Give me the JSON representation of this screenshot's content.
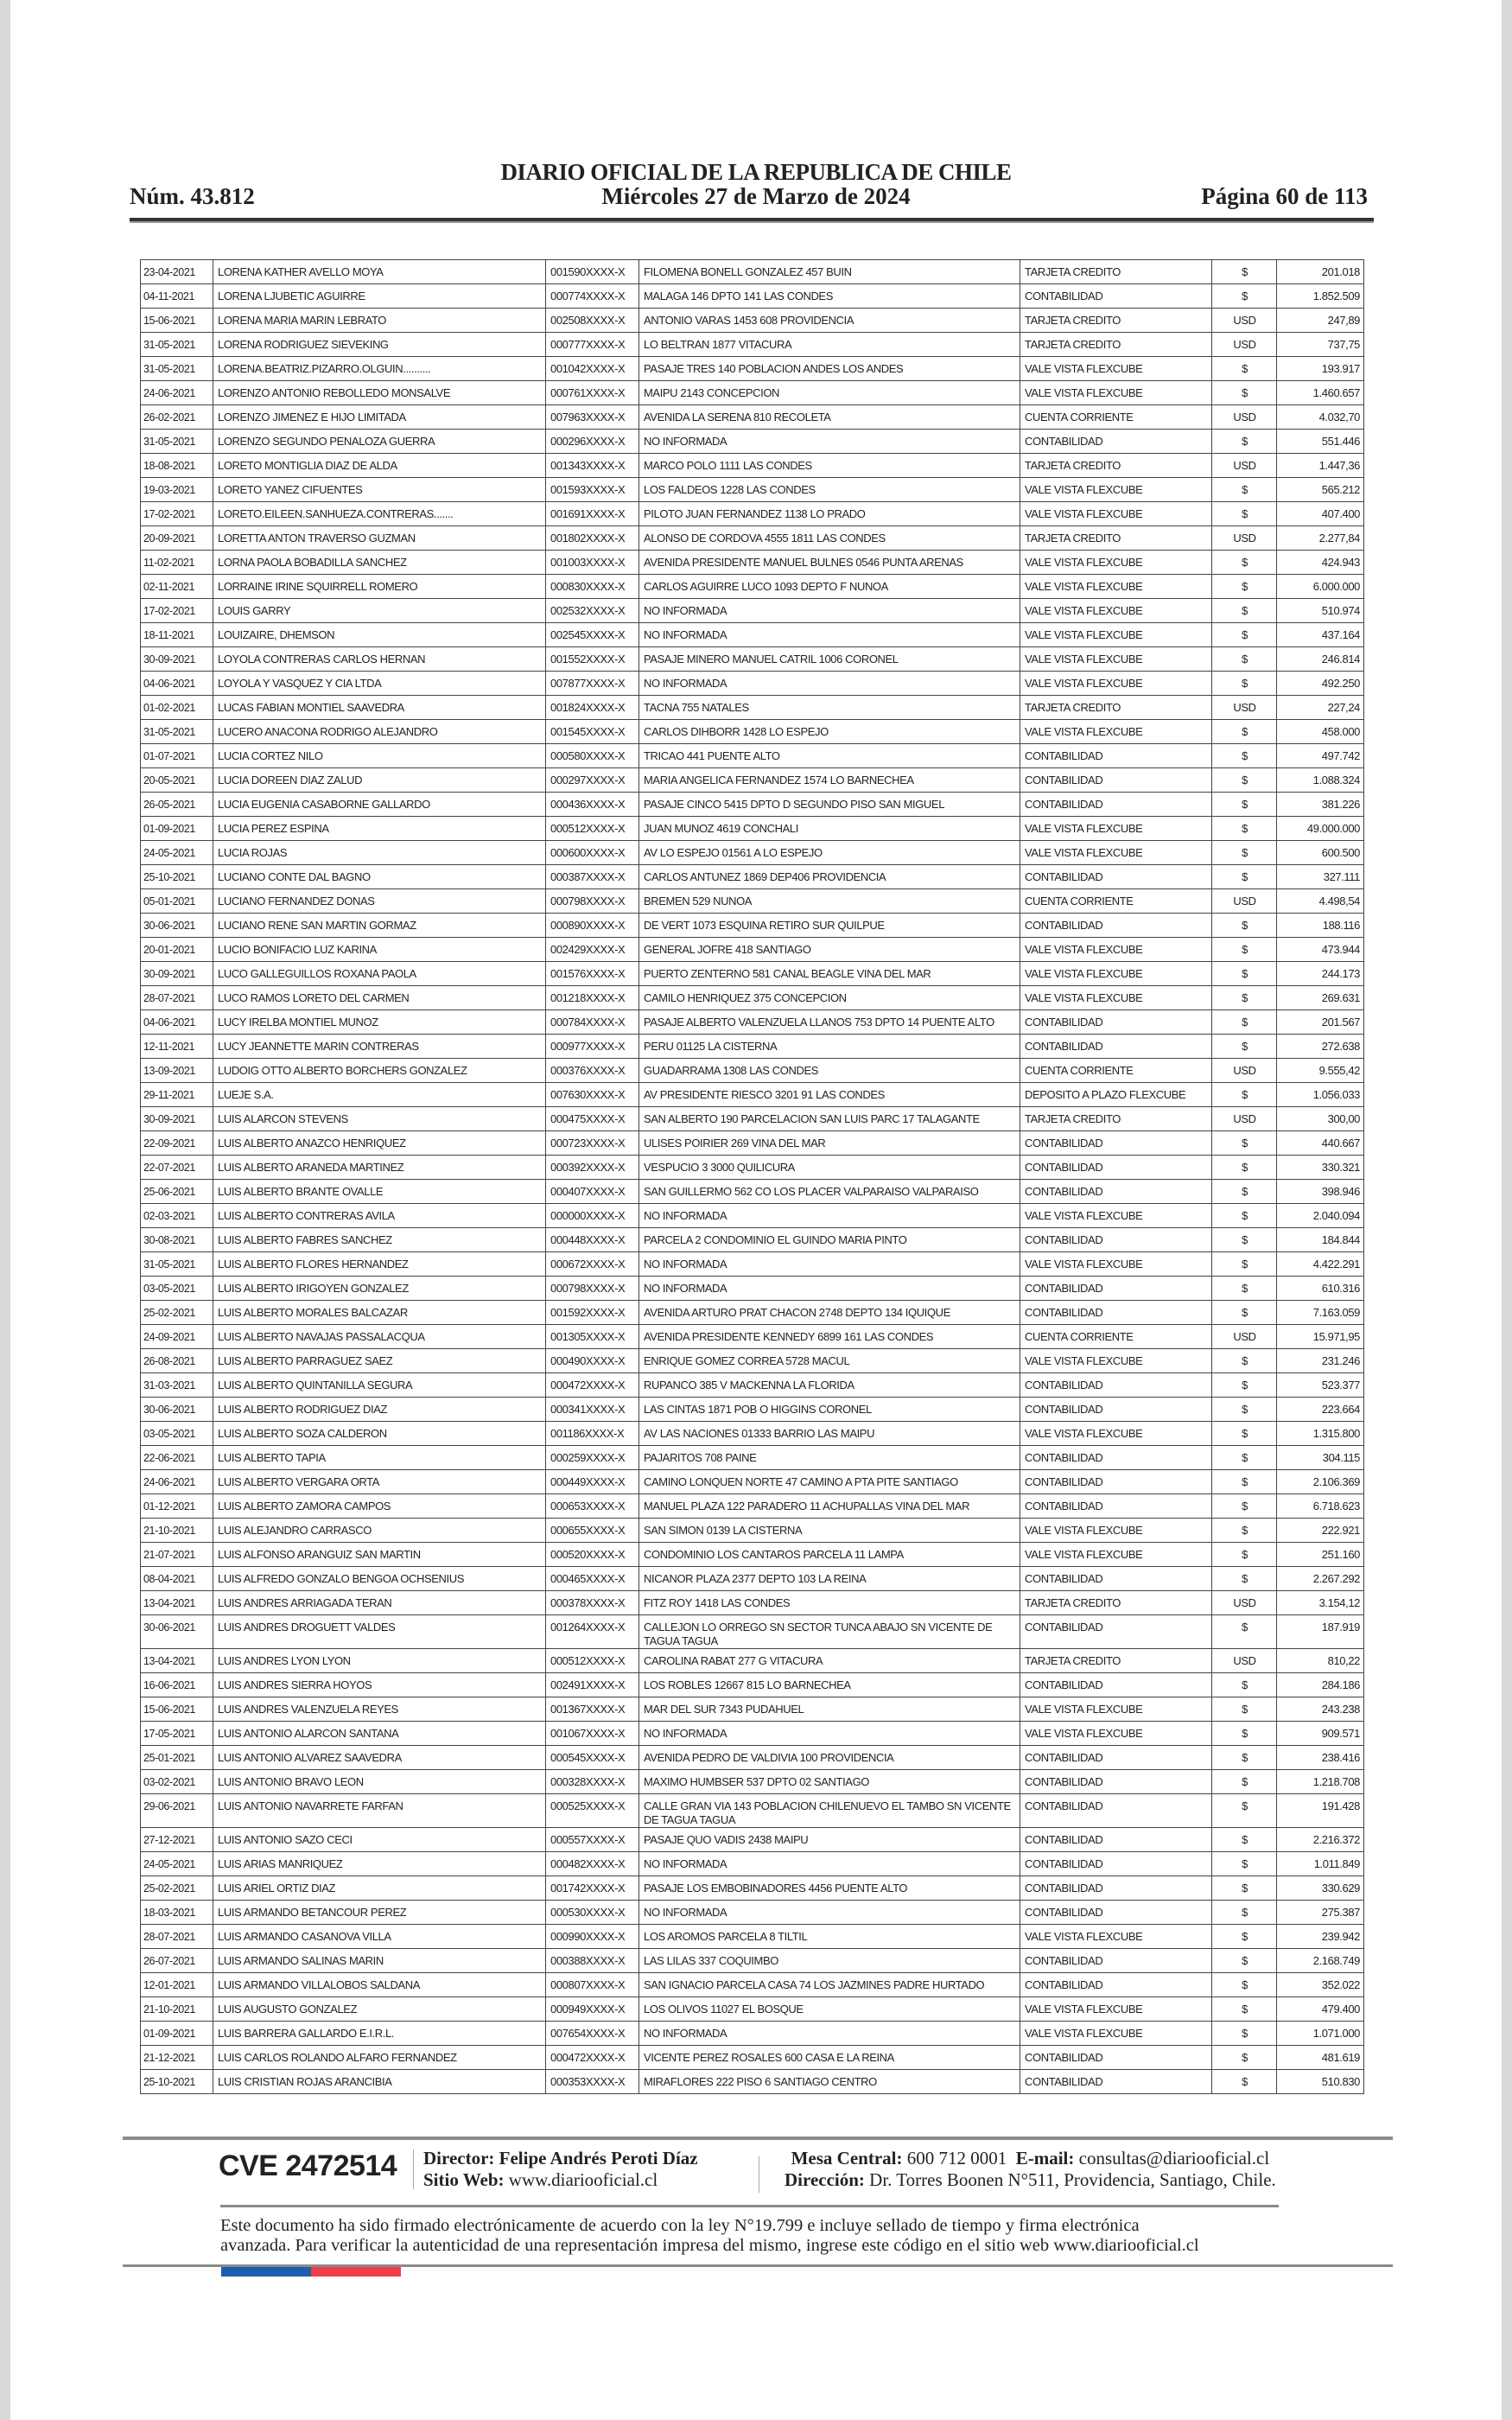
{
  "header": {
    "title": "DIARIO OFICIAL DE LA REPUBLICA DE CHILE",
    "number": "Núm. 43.812",
    "date": "Miércoles 27 de Marzo de 2024",
    "page": "Página 60 de 113"
  },
  "table": {
    "rows": [
      [
        "23-04-2021",
        "LORENA KATHER AVELLO MOYA",
        "001590XXXX-X",
        "FILOMENA BONELL GONZALEZ 457 BUIN",
        "TARJETA CREDITO",
        "$",
        "201.018"
      ],
      [
        "04-11-2021",
        "LORENA LJUBETIC AGUIRRE",
        "000774XXXX-X",
        "MALAGA 146 DPTO 141 LAS CONDES",
        "CONTABILIDAD",
        "$",
        "1.852.509"
      ],
      [
        "15-06-2021",
        "LORENA MARIA MARIN LEBRATO",
        "002508XXXX-X",
        "ANTONIO VARAS 1453 608 PROVIDENCIA",
        "TARJETA CREDITO",
        "USD",
        "247,89"
      ],
      [
        "31-05-2021",
        "LORENA RODRIGUEZ SIEVEKING",
        "000777XXXX-X",
        "LO BELTRAN 1877 VITACURA",
        "TARJETA CREDITO",
        "USD",
        "737,75"
      ],
      [
        "31-05-2021",
        "LORENA.BEATRIZ.PIZARRO.OLGUIN..........",
        "001042XXXX-X",
        "PASAJE TRES 140 POBLACION ANDES LOS ANDES",
        "VALE VISTA FLEXCUBE",
        "$",
        "193.917"
      ],
      [
        "24-06-2021",
        "LORENZO ANTONIO REBOLLEDO MONSALVE",
        "000761XXXX-X",
        "MAIPU 2143 CONCEPCION",
        "VALE VISTA FLEXCUBE",
        "$",
        "1.460.657"
      ],
      [
        "26-02-2021",
        "LORENZO JIMENEZ E HIJO LIMITADA",
        "007963XXXX-X",
        "AVENIDA LA SERENA 810 RECOLETA",
        "CUENTA CORRIENTE",
        "USD",
        "4.032,70"
      ],
      [
        "31-05-2021",
        "LORENZO SEGUNDO PENALOZA GUERRA",
        "000296XXXX-X",
        "NO INFORMADA",
        "CONTABILIDAD",
        "$",
        "551.446"
      ],
      [
        "18-08-2021",
        "LORETO MONTIGLIA DIAZ DE ALDA",
        "001343XXXX-X",
        "MARCO POLO 1111 LAS CONDES",
        "TARJETA CREDITO",
        "USD",
        "1.447,36"
      ],
      [
        "19-03-2021",
        "LORETO YANEZ CIFUENTES",
        "001593XXXX-X",
        "LOS FALDEOS 1228 LAS CONDES",
        "VALE VISTA FLEXCUBE",
        "$",
        "565.212"
      ],
      [
        "17-02-2021",
        "LORETO.EILEEN.SANHUEZA.CONTRERAS.......",
        "001691XXXX-X",
        "PILOTO JUAN FERNANDEZ 1138 LO PRADO",
        "VALE VISTA FLEXCUBE",
        "$",
        "407.400"
      ],
      [
        "20-09-2021",
        "LORETTA ANTON TRAVERSO GUZMAN",
        "001802XXXX-X",
        "ALONSO DE CORDOVA 4555 1811 LAS CONDES",
        "TARJETA CREDITO",
        "USD",
        "2.277,84"
      ],
      [
        "11-02-2021",
        "LORNA PAOLA BOBADILLA SANCHEZ",
        "001003XXXX-X",
        "AVENIDA PRESIDENTE MANUEL BULNES 0546 PUNTA ARENAS",
        "VALE VISTA FLEXCUBE",
        "$",
        "424.943"
      ],
      [
        "02-11-2021",
        "LORRAINE IRINE SQUIRRELL ROMERO",
        "000830XXXX-X",
        "CARLOS AGUIRRE LUCO 1093 DEPTO F NUNOA",
        "VALE VISTA FLEXCUBE",
        "$",
        "6.000.000"
      ],
      [
        "17-02-2021",
        "LOUIS GARRY",
        "002532XXXX-X",
        "NO INFORMADA",
        "VALE VISTA FLEXCUBE",
        "$",
        "510.974"
      ],
      [
        "18-11-2021",
        "LOUIZAIRE, DHEMSON",
        "002545XXXX-X",
        "NO INFORMADA",
        "VALE VISTA FLEXCUBE",
        "$",
        "437.164"
      ],
      [
        "30-09-2021",
        "LOYOLA CONTRERAS CARLOS HERNAN",
        "001552XXXX-X",
        "PASAJE MINERO MANUEL CATRIL 1006 CORONEL",
        "VALE VISTA FLEXCUBE",
        "$",
        "246.814"
      ],
      [
        "04-06-2021",
        "LOYOLA Y VASQUEZ Y CIA LTDA",
        "007877XXXX-X",
        "NO INFORMADA",
        "VALE VISTA FLEXCUBE",
        "$",
        "492.250"
      ],
      [
        "01-02-2021",
        "LUCAS FABIAN MONTIEL SAAVEDRA",
        "001824XXXX-X",
        "TACNA 755 NATALES",
        "TARJETA CREDITO",
        "USD",
        "227,24"
      ],
      [
        "31-05-2021",
        "LUCERO ANACONA RODRIGO ALEJANDRO",
        "001545XXXX-X",
        "CARLOS DIHBORR 1428 LO ESPEJO",
        "VALE VISTA FLEXCUBE",
        "$",
        "458.000"
      ],
      [
        "01-07-2021",
        "LUCIA CORTEZ NILO",
        "000580XXXX-X",
        "TRICAO 441 PUENTE ALTO",
        "CONTABILIDAD",
        "$",
        "497.742"
      ],
      [
        "20-05-2021",
        "LUCIA DOREEN DIAZ ZALUD",
        "000297XXXX-X",
        "MARIA ANGELICA FERNANDEZ 1574 LO BARNECHEA",
        "CONTABILIDAD",
        "$",
        "1.088.324"
      ],
      [
        "26-05-2021",
        "LUCIA EUGENIA CASABORNE GALLARDO",
        "000436XXXX-X",
        "PASAJE CINCO 5415 DPTO D SEGUNDO PISO SAN MIGUEL",
        "CONTABILIDAD",
        "$",
        "381.226"
      ],
      [
        "01-09-2021",
        "LUCIA PEREZ ESPINA",
        "000512XXXX-X",
        "JUAN MUNOZ 4619 CONCHALI",
        "VALE VISTA FLEXCUBE",
        "$",
        "49.000.000"
      ],
      [
        "24-05-2021",
        "LUCIA ROJAS",
        "000600XXXX-X",
        "AV LO ESPEJO 01561 A LO ESPEJO",
        "VALE VISTA FLEXCUBE",
        "$",
        "600.500"
      ],
      [
        "25-10-2021",
        "LUCIANO CONTE DAL BAGNO",
        "000387XXXX-X",
        "CARLOS ANTUNEZ 1869 DEP406 PROVIDENCIA",
        "CONTABILIDAD",
        "$",
        "327.111"
      ],
      [
        "05-01-2021",
        "LUCIANO FERNANDEZ DONAS",
        "000798XXXX-X",
        "BREMEN 529 NUNOA",
        "CUENTA CORRIENTE",
        "USD",
        "4.498,54"
      ],
      [
        "30-06-2021",
        "LUCIANO RENE SAN MARTIN GORMAZ",
        "000890XXXX-X",
        "DE VERT 1073 ESQUINA RETIRO SUR QUILPUE",
        "CONTABILIDAD",
        "$",
        "188.116"
      ],
      [
        "20-01-2021",
        "LUCIO BONIFACIO LUZ KARINA",
        "002429XXXX-X",
        "GENERAL JOFRE 418 SANTIAGO",
        "VALE VISTA FLEXCUBE",
        "$",
        "473.944"
      ],
      [
        "30-09-2021",
        "LUCO GALLEGUILLOS ROXANA PAOLA",
        "001576XXXX-X",
        "PUERTO ZENTERNO 581 CANAL BEAGLE VINA DEL MAR",
        "VALE VISTA FLEXCUBE",
        "$",
        "244.173"
      ],
      [
        "28-07-2021",
        "LUCO RAMOS LORETO DEL CARMEN",
        "001218XXXX-X",
        "CAMILO HENRIQUEZ 375 CONCEPCION",
        "VALE VISTA FLEXCUBE",
        "$",
        "269.631"
      ],
      [
        "04-06-2021",
        "LUCY IRELBA MONTIEL MUNOZ",
        "000784XXXX-X",
        "PASAJE ALBERTO VALENZUELA LLANOS 753 DPTO 14 PUENTE ALTO",
        "CONTABILIDAD",
        "$",
        "201.567"
      ],
      [
        "12-11-2021",
        "LUCY JEANNETTE MARIN CONTRERAS",
        "000977XXXX-X",
        "PERU 01125 LA CISTERNA",
        "CONTABILIDAD",
        "$",
        "272.638"
      ],
      [
        "13-09-2021",
        "LUDOIG OTTO ALBERTO BORCHERS GONZALEZ",
        "000376XXXX-X",
        "GUADARRAMA 1308 LAS CONDES",
        "CUENTA CORRIENTE",
        "USD",
        "9.555,42"
      ],
      [
        "29-11-2021",
        "LUEJE S.A.",
        "007630XXXX-X",
        "AV PRESIDENTE RIESCO 3201 91 LAS CONDES",
        "DEPOSITO A PLAZO FLEXCUBE",
        "$",
        "1.056.033"
      ],
      [
        "30-09-2021",
        "LUIS ALARCON STEVENS",
        "000475XXXX-X",
        "SAN ALBERTO 190 PARCELACION SAN LUIS PARC 17 TALAGANTE",
        "TARJETA CREDITO",
        "USD",
        "300,00"
      ],
      [
        "22-09-2021",
        "LUIS ALBERTO ANAZCO HENRIQUEZ",
        "000723XXXX-X",
        "ULISES POIRIER 269 VINA DEL MAR",
        "CONTABILIDAD",
        "$",
        "440.667"
      ],
      [
        "22-07-2021",
        "LUIS ALBERTO ARANEDA MARTINEZ",
        "000392XXXX-X",
        "VESPUCIO 3 3000 QUILICURA",
        "CONTABILIDAD",
        "$",
        "330.321"
      ],
      [
        "25-06-2021",
        "LUIS ALBERTO BRANTE OVALLE",
        "000407XXXX-X",
        "SAN GUILLERMO 562 CO LOS PLACER VALPARAISO VALPARAISO",
        "CONTABILIDAD",
        "$",
        "398.946"
      ],
      [
        "02-03-2021",
        "LUIS ALBERTO CONTRERAS AVILA",
        "000000XXXX-X",
        "NO INFORMADA",
        "VALE VISTA FLEXCUBE",
        "$",
        "2.040.094"
      ],
      [
        "30-08-2021",
        "LUIS ALBERTO FABRES SANCHEZ",
        "000448XXXX-X",
        "PARCELA 2 CONDOMINIO EL GUINDO MARIA PINTO",
        "CONTABILIDAD",
        "$",
        "184.844"
      ],
      [
        "31-05-2021",
        "LUIS ALBERTO FLORES HERNANDEZ",
        "000672XXXX-X",
        "NO INFORMADA",
        "VALE VISTA FLEXCUBE",
        "$",
        "4.422.291"
      ],
      [
        "03-05-2021",
        "LUIS ALBERTO IRIGOYEN GONZALEZ",
        "000798XXXX-X",
        "NO INFORMADA",
        "CONTABILIDAD",
        "$",
        "610.316"
      ],
      [
        "25-02-2021",
        "LUIS ALBERTO MORALES BALCAZAR",
        "001592XXXX-X",
        "AVENIDA ARTURO PRAT CHACON 2748 DEPTO 134 IQUIQUE",
        "CONTABILIDAD",
        "$",
        "7.163.059"
      ],
      [
        "24-09-2021",
        "LUIS ALBERTO NAVAJAS PASSALACQUA",
        "001305XXXX-X",
        "AVENIDA PRESIDENTE KENNEDY 6899 161 LAS CONDES",
        "CUENTA CORRIENTE",
        "USD",
        "15.971,95"
      ],
      [
        "26-08-2021",
        "LUIS ALBERTO PARRAGUEZ SAEZ",
        "000490XXXX-X",
        "ENRIQUE GOMEZ CORREA 5728 MACUL",
        "VALE VISTA FLEXCUBE",
        "$",
        "231.246"
      ],
      [
        "31-03-2021",
        "LUIS ALBERTO QUINTANILLA SEGURA",
        "000472XXXX-X",
        "RUPANCO 385 V MACKENNA LA FLORIDA",
        "CONTABILIDAD",
        "$",
        "523.377"
      ],
      [
        "30-06-2021",
        "LUIS ALBERTO RODRIGUEZ DIAZ",
        "000341XXXX-X",
        "LAS CINTAS 1871 POB O HIGGINS CORONEL",
        "CONTABILIDAD",
        "$",
        "223.664"
      ],
      [
        "03-05-2021",
        "LUIS ALBERTO SOZA CALDERON",
        "001186XXXX-X",
        "AV LAS NACIONES 01333 BARRIO LAS MAIPU",
        "VALE VISTA FLEXCUBE",
        "$",
        "1.315.800"
      ],
      [
        "22-06-2021",
        "LUIS ALBERTO TAPIA",
        "000259XXXX-X",
        "PAJARITOS 708 PAINE",
        "CONTABILIDAD",
        "$",
        "304.115"
      ],
      [
        "24-06-2021",
        "LUIS ALBERTO VERGARA ORTA",
        "000449XXXX-X",
        "CAMINO LONQUEN NORTE 47 CAMINO A PTA PITE SANTIAGO",
        "CONTABILIDAD",
        "$",
        "2.106.369"
      ],
      [
        "01-12-2021",
        "LUIS ALBERTO ZAMORA CAMPOS",
        "000653XXXX-X",
        "MANUEL PLAZA 122 PARADERO 11 ACHUPALLAS VINA DEL MAR",
        "CONTABILIDAD",
        "$",
        "6.718.623"
      ],
      [
        "21-10-2021",
        "LUIS ALEJANDRO CARRASCO",
        "000655XXXX-X",
        "SAN SIMON 0139 LA CISTERNA",
        "VALE VISTA FLEXCUBE",
        "$",
        "222.921"
      ],
      [
        "21-07-2021",
        "LUIS ALFONSO ARANGUIZ SAN MARTIN",
        "000520XXXX-X",
        "CONDOMINIO LOS CANTAROS PARCELA 11 LAMPA",
        "VALE VISTA FLEXCUBE",
        "$",
        "251.160"
      ],
      [
        "08-04-2021",
        "LUIS ALFREDO GONZALO BENGOA OCHSENIUS",
        "000465XXXX-X",
        "NICANOR PLAZA 2377 DEPTO 103 LA REINA",
        "CONTABILIDAD",
        "$",
        "2.267.292"
      ],
      [
        "13-04-2021",
        "LUIS ANDRES ARRIAGADA TERAN",
        "000378XXXX-X",
        "FITZ ROY 1418 LAS CONDES",
        "TARJETA CREDITO",
        "USD",
        "3.154,12"
      ],
      [
        "30-06-2021",
        "LUIS ANDRES DROGUETT VALDES",
        "001264XXXX-X",
        "CALLEJON LO ORREGO SN SECTOR TUNCA ABAJO SN VICENTE DE TAGUA TAGUA",
        "CONTABILIDAD",
        "$",
        "187.919"
      ],
      [
        "13-04-2021",
        "LUIS ANDRES LYON LYON",
        "000512XXXX-X",
        "CAROLINA RABAT 277 G VITACURA",
        "TARJETA CREDITO",
        "USD",
        "810,22"
      ],
      [
        "16-06-2021",
        "LUIS ANDRES SIERRA HOYOS",
        "002491XXXX-X",
        "LOS ROBLES 12667 815 LO BARNECHEA",
        "CONTABILIDAD",
        "$",
        "284.186"
      ],
      [
        "15-06-2021",
        "LUIS ANDRES VALENZUELA REYES",
        "001367XXXX-X",
        "MAR DEL SUR 7343 PUDAHUEL",
        "VALE VISTA FLEXCUBE",
        "$",
        "243.238"
      ],
      [
        "17-05-2021",
        "LUIS ANTONIO ALARCON SANTANA",
        "001067XXXX-X",
        "NO INFORMADA",
        "VALE VISTA FLEXCUBE",
        "$",
        "909.571"
      ],
      [
        "25-01-2021",
        "LUIS ANTONIO ALVAREZ SAAVEDRA",
        "000545XXXX-X",
        "AVENIDA PEDRO DE VALDIVIA 100 PROVIDENCIA",
        "CONTABILIDAD",
        "$",
        "238.416"
      ],
      [
        "03-02-2021",
        "LUIS ANTONIO BRAVO LEON",
        "000328XXXX-X",
        "MAXIMO HUMBSER 537 DPTO 02 SANTIAGO",
        "CONTABILIDAD",
        "$",
        "1.218.708"
      ],
      [
        "29-06-2021",
        "LUIS ANTONIO NAVARRETE FARFAN",
        "000525XXXX-X",
        "CALLE GRAN VIA 143 POBLACION CHILENUEVO EL TAMBO SN VICENTE DE TAGUA TAGUA",
        "CONTABILIDAD",
        "$",
        "191.428"
      ],
      [
        "27-12-2021",
        "LUIS ANTONIO SAZO CECI",
        "000557XXXX-X",
        "PASAJE QUO VADIS 2438 MAIPU",
        "CONTABILIDAD",
        "$",
        "2.216.372"
      ],
      [
        "24-05-2021",
        "LUIS ARIAS MANRIQUEZ",
        "000482XXXX-X",
        "NO INFORMADA",
        "CONTABILIDAD",
        "$",
        "1.011.849"
      ],
      [
        "25-02-2021",
        "LUIS ARIEL ORTIZ DIAZ",
        "001742XXXX-X",
        "PASAJE LOS EMBOBINADORES 4456 PUENTE ALTO",
        "CONTABILIDAD",
        "$",
        "330.629"
      ],
      [
        "18-03-2021",
        "LUIS ARMANDO BETANCOUR PEREZ",
        "000530XXXX-X",
        "NO INFORMADA",
        "CONTABILIDAD",
        "$",
        "275.387"
      ],
      [
        "28-07-2021",
        "LUIS ARMANDO CASANOVA VILLA",
        "000990XXXX-X",
        "LOS AROMOS PARCELA 8 TILTIL",
        "VALE VISTA FLEXCUBE",
        "$",
        "239.942"
      ],
      [
        "26-07-2021",
        "LUIS ARMANDO SALINAS MARIN",
        "000388XXXX-X",
        "LAS LILAS 337 COQUIMBO",
        "CONTABILIDAD",
        "$",
        "2.168.749"
      ],
      [
        "12-01-2021",
        "LUIS ARMANDO VILLALOBOS SALDANA",
        "000807XXXX-X",
        "SAN IGNACIO PARCELA CASA 74 LOS JAZMINES PADRE HURTADO",
        "CONTABILIDAD",
        "$",
        "352.022"
      ],
      [
        "21-10-2021",
        "LUIS AUGUSTO GONZALEZ",
        "000949XXXX-X",
        "LOS OLIVOS 11027 EL BOSQUE",
        "VALE VISTA FLEXCUBE",
        "$",
        "479.400"
      ],
      [
        "01-09-2021",
        "LUIS BARRERA GALLARDO E.I.R.L.",
        "007654XXXX-X",
        "NO INFORMADA",
        "VALE VISTA FLEXCUBE",
        "$",
        "1.071.000"
      ],
      [
        "21-12-2021",
        "LUIS CARLOS ROLANDO ALFARO FERNANDEZ",
        "000472XXXX-X",
        "VICENTE PEREZ ROSALES 600 CASA E LA REINA",
        "CONTABILIDAD",
        "$",
        "481.619"
      ],
      [
        "25-10-2021",
        "LUIS CRISTIAN ROJAS ARANCIBIA",
        "000353XXXX-X",
        "MIRAFLORES 222 PISO 6 SANTIAGO CENTRO",
        "CONTABILIDAD",
        "$",
        "510.830"
      ]
    ]
  },
  "footer": {
    "cve": "CVE 2472514",
    "director_label": "Director:",
    "director_name": "Felipe Andrés Peroti Díaz",
    "web_label": "Sitio Web:",
    "web_value": "www.diariooficial.cl",
    "phone_label": "Mesa Central:",
    "phone_value": "600 712 0001",
    "email_label": "E-mail:",
    "email_value": "consultas@diariooficial.cl",
    "address_label": "Dirección:",
    "address_value": "Dr. Torres Boonen N°511, Providencia, Santiago, Chile.",
    "legal_line1": "Este documento ha sido firmado electrónicamente de acuerdo con la ley N°19.799 e incluye sellado de tiempo y firma electrónica",
    "legal_line2": "avanzada. Para verificar la autenticidad de una representación impresa del mismo, ingrese este código en el sitio web www.diariooficial.cl",
    "flag_colors": [
      "#1c5fae",
      "#ef3e4a"
    ]
  }
}
